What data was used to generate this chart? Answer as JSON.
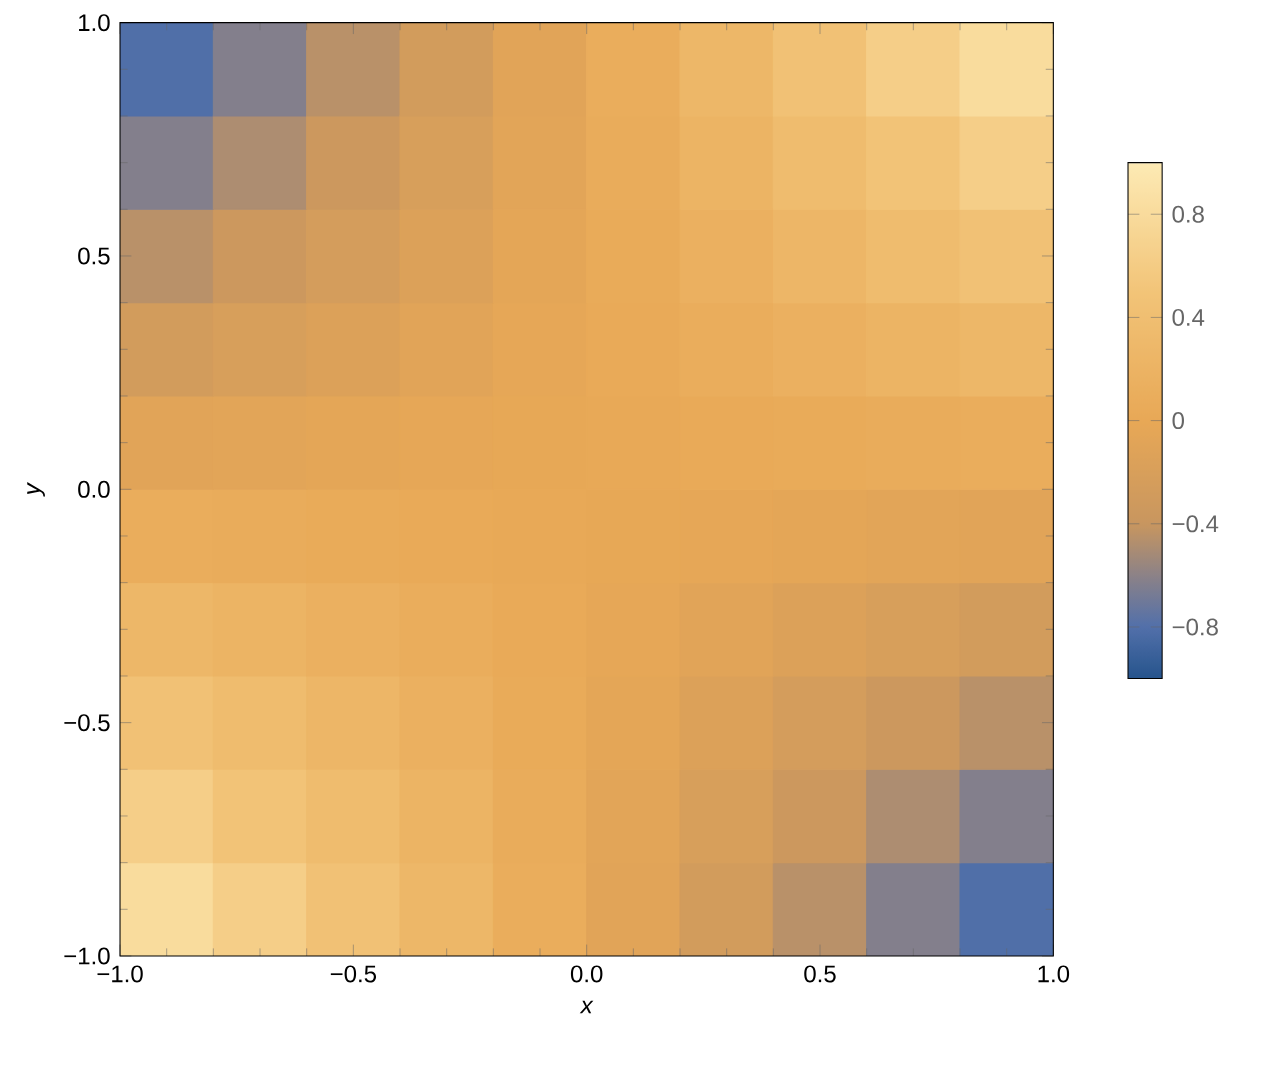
{
  "chart_data": {
    "type": "heatmap",
    "xlabel": "x",
    "ylabel": "y",
    "x": [
      -0.9,
      -0.7,
      -0.5,
      -0.3,
      -0.1,
      0.1,
      0.3,
      0.5,
      0.7,
      0.9
    ],
    "y": [
      0.9,
      0.7,
      0.5,
      0.3,
      0.1,
      -0.1,
      -0.3,
      -0.5,
      -0.7,
      -0.9
    ],
    "cells": [
      [
        -0.81,
        -0.63,
        -0.45,
        -0.27,
        -0.09,
        0.09,
        0.27,
        0.45,
        0.63,
        0.81
      ],
      [
        -0.63,
        -0.49,
        -0.35,
        -0.21,
        -0.07,
        0.07,
        0.21,
        0.35,
        0.49,
        0.63
      ],
      [
        -0.45,
        -0.35,
        -0.25,
        -0.15,
        -0.05,
        0.05,
        0.15,
        0.25,
        0.35,
        0.45
      ],
      [
        -0.27,
        -0.21,
        -0.15,
        -0.09,
        -0.03,
        0.03,
        0.09,
        0.15,
        0.21,
        0.27
      ],
      [
        -0.09,
        -0.07,
        -0.05,
        -0.03,
        -0.01,
        0.01,
        0.03,
        0.05,
        0.07,
        0.09
      ],
      [
        0.09,
        0.07,
        0.05,
        0.03,
        0.01,
        -0.01,
        -0.03,
        -0.05,
        -0.07,
        -0.09
      ],
      [
        0.27,
        0.21,
        0.15,
        0.09,
        0.03,
        -0.03,
        -0.09,
        -0.15,
        -0.21,
        -0.27
      ],
      [
        0.45,
        0.35,
        0.25,
        0.15,
        0.05,
        -0.05,
        -0.15,
        -0.25,
        -0.35,
        -0.45
      ],
      [
        0.63,
        0.49,
        0.35,
        0.21,
        0.07,
        -0.07,
        -0.21,
        -0.35,
        -0.49,
        -0.63
      ],
      [
        0.81,
        0.63,
        0.45,
        0.27,
        0.09,
        -0.09,
        -0.27,
        -0.45,
        -0.63,
        -0.81
      ]
    ],
    "xlim": [
      -1,
      1
    ],
    "ylim": [
      -1,
      1
    ],
    "xticks": [
      {
        "value": -1,
        "label": "−1.0"
      },
      {
        "value": -0.5,
        "label": "−0.5"
      },
      {
        "value": 0,
        "label": "0.0"
      },
      {
        "value": 0.5,
        "label": "0.5"
      },
      {
        "value": 1,
        "label": "1.0"
      }
    ],
    "yticks": [
      {
        "value": -1,
        "label": "−1.0"
      },
      {
        "value": -0.5,
        "label": "−0.5"
      },
      {
        "value": 0,
        "label": "0.0"
      },
      {
        "value": 0.5,
        "label": "0.5"
      },
      {
        "value": 1,
        "label": "1.0"
      }
    ],
    "clim": [
      -1,
      1
    ],
    "cticks": [
      {
        "value": -0.8,
        "label": "−0.8"
      },
      {
        "value": -0.4,
        "label": "−0.4"
      },
      0,
      0.4,
      0.8
    ]
  }
}
